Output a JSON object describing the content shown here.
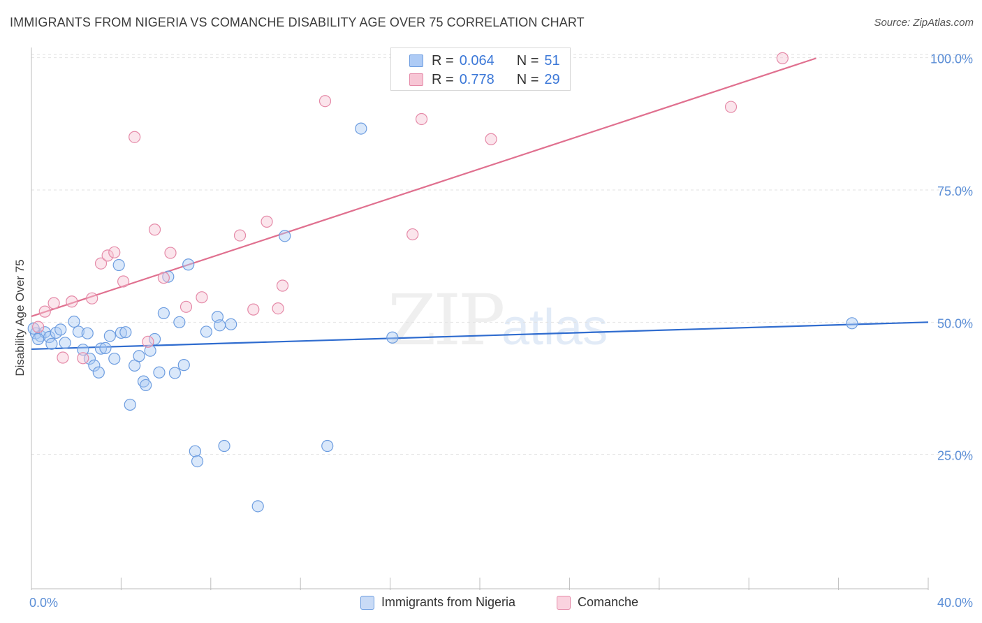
{
  "title": "IMMIGRANTS FROM NIGERIA VS COMANCHE DISABILITY AGE OVER 75 CORRELATION CHART",
  "source": "Source: ZipAtlas.com",
  "watermark": {
    "zip": "ZIP",
    "atlas": "atlas"
  },
  "legend": {
    "rows": [
      {
        "r_label": "R =",
        "r_value": "0.064",
        "n_label": "N =",
        "n_value": "51",
        "color": "#aecbf5",
        "border": "#6d9de0"
      },
      {
        "r_label": "R =",
        "r_value": "0.778",
        "n_label": "N =",
        "n_value": "29",
        "color": "#f7c6d5",
        "border": "#e58aa8"
      }
    ]
  },
  "bottom_legend": [
    {
      "label": "Immigrants from Nigeria",
      "color": "#c9dbf6",
      "border": "#6d9de0"
    },
    {
      "label": "Comanche",
      "color": "#fad3df",
      "border": "#e58aa8"
    }
  ],
  "chart_data": {
    "type": "scatter",
    "title": "IMMIGRANTS FROM NIGERIA VS COMANCHE DISABILITY AGE OVER 75 CORRELATION CHART",
    "xlabel": "",
    "ylabel": "Disability Age Over 75",
    "xlim": [
      0,
      40
    ],
    "ylim": [
      0,
      102
    ],
    "x_tick_labels": {
      "left": "0.0%",
      "right": "40.0%"
    },
    "y_ticks": [
      {
        "value": 25,
        "label": "25.0%"
      },
      {
        "value": 50,
        "label": "50.0%"
      },
      {
        "value": 75,
        "label": "75.0%"
      },
      {
        "value": 100,
        "label": "100.0%"
      }
    ],
    "series": [
      {
        "name": "Immigrants from Nigeria",
        "color": "#6d9de0",
        "fill": "#aecbf5",
        "line_color": "#2f6ccf",
        "trend": {
          "x0": 0,
          "y0": 45.3,
          "x1": 40,
          "y1": 50.4
        },
        "points": [
          [
            0.2,
            48.3
          ],
          [
            0.4,
            47.8
          ],
          [
            0.6,
            48.5
          ],
          [
            0.8,
            47.6
          ],
          [
            0.9,
            46.3
          ],
          [
            1.1,
            48.4
          ],
          [
            1.3,
            49.0
          ],
          [
            1.5,
            46.5
          ],
          [
            1.9,
            50.5
          ],
          [
            2.1,
            48.6
          ],
          [
            2.3,
            45.2
          ],
          [
            2.5,
            48.3
          ],
          [
            2.6,
            43.5
          ],
          [
            2.8,
            42.2
          ],
          [
            3.0,
            40.9
          ],
          [
            3.1,
            45.4
          ],
          [
            3.3,
            45.5
          ],
          [
            3.5,
            47.8
          ],
          [
            3.7,
            43.5
          ],
          [
            3.9,
            61.2
          ],
          [
            4.0,
            48.4
          ],
          [
            4.2,
            48.5
          ],
          [
            4.4,
            34.8
          ],
          [
            4.6,
            42.2
          ],
          [
            4.8,
            44.0
          ],
          [
            5.0,
            39.2
          ],
          [
            5.1,
            38.5
          ],
          [
            5.3,
            45.0
          ],
          [
            5.5,
            47.2
          ],
          [
            5.7,
            40.9
          ],
          [
            5.9,
            52.1
          ],
          [
            6.1,
            59.0
          ],
          [
            6.4,
            40.8
          ],
          [
            6.6,
            50.4
          ],
          [
            6.8,
            42.3
          ],
          [
            7.0,
            61.3
          ],
          [
            7.3,
            26.0
          ],
          [
            7.4,
            24.1
          ],
          [
            7.8,
            48.6
          ],
          [
            8.3,
            51.4
          ],
          [
            8.4,
            49.8
          ],
          [
            8.6,
            27.0
          ],
          [
            8.9,
            50.0
          ],
          [
            10.1,
            15.6
          ],
          [
            11.3,
            66.7
          ],
          [
            13.2,
            27.0
          ],
          [
            14.7,
            87.0
          ],
          [
            16.1,
            47.5
          ],
          [
            36.6,
            50.2
          ],
          [
            0.1,
            49.2
          ],
          [
            0.3,
            47.2
          ]
        ]
      },
      {
        "name": "Comanche",
        "color": "#e58aa8",
        "fill": "#f7c6d5",
        "line_color": "#e0708f",
        "trend": {
          "x0": 0,
          "y0": 51.5,
          "x1": 35,
          "y1": 100.3
        },
        "points": [
          [
            0.3,
            49.5
          ],
          [
            0.6,
            52.4
          ],
          [
            1.0,
            54.0
          ],
          [
            1.4,
            43.7
          ],
          [
            1.8,
            54.3
          ],
          [
            2.3,
            43.6
          ],
          [
            2.7,
            54.9
          ],
          [
            3.1,
            61.5
          ],
          [
            3.4,
            63.0
          ],
          [
            3.7,
            63.6
          ],
          [
            4.1,
            58.1
          ],
          [
            4.6,
            85.4
          ],
          [
            5.2,
            46.7
          ],
          [
            5.5,
            67.9
          ],
          [
            5.9,
            58.8
          ],
          [
            6.2,
            63.5
          ],
          [
            6.9,
            53.3
          ],
          [
            7.6,
            55.1
          ],
          [
            9.3,
            66.8
          ],
          [
            9.9,
            52.8
          ],
          [
            10.5,
            69.4
          ],
          [
            11.0,
            53.0
          ],
          [
            11.2,
            57.3
          ],
          [
            13.1,
            92.2
          ],
          [
            17.0,
            67.0
          ],
          [
            17.4,
            88.8
          ],
          [
            20.5,
            85.0
          ],
          [
            31.2,
            91.1
          ],
          [
            33.5,
            100.3
          ]
        ]
      }
    ]
  }
}
